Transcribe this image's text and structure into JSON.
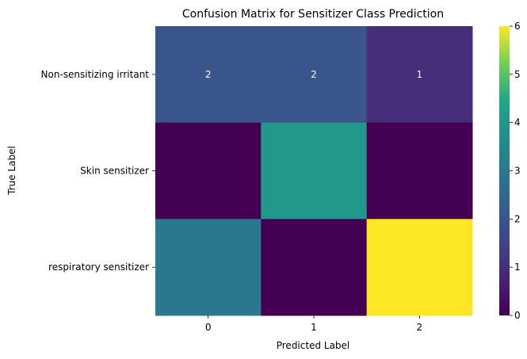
{
  "chart_data": {
    "type": "heatmap",
    "title": "Confusion Matrix for Sensitizer Class Prediction",
    "xlabel": "Predicted Label",
    "ylabel": "True Label",
    "x_categories": [
      "0",
      "1",
      "2"
    ],
    "y_categories": [
      "Non-sensitizing irritant",
      "Skin sensitizer",
      "respiratory sensitizer"
    ],
    "values": [
      [
        2,
        2,
        1
      ],
      [
        0,
        4,
        0
      ],
      [
        3,
        0,
        6
      ]
    ],
    "annotated_rows": [
      0
    ],
    "colormap": "viridis",
    "colorbar": {
      "min": 0,
      "max": 6,
      "ticks": [
        "0",
        "1",
        "2",
        "3",
        "4",
        "5",
        "6"
      ]
    }
  }
}
